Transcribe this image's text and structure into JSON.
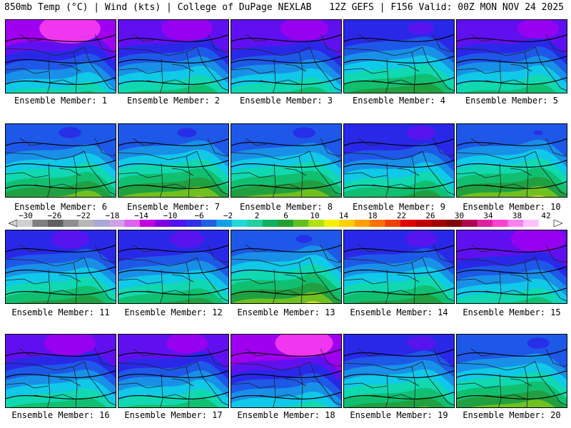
{
  "header": {
    "left": "850mb Temp (°C) | Wind (kts) | College of DuPage NEXLAB",
    "right": "12Z GEFS | F156 Valid: 00Z MON NOV 24 2025"
  },
  "members": [
    {
      "label": "Ensemble Member: 1",
      "cold": 0.95
    },
    {
      "label": "Ensemble Member: 2",
      "cold": 0.8
    },
    {
      "label": "Ensemble Member: 3",
      "cold": 0.75
    },
    {
      "label": "Ensemble Member: 4",
      "cold": 0.4
    },
    {
      "label": "Ensemble Member: 5",
      "cold": 0.65
    },
    {
      "label": "Ensemble Member: 6",
      "cold": 0.35
    },
    {
      "label": "Ensemble Member: 7",
      "cold": 0.3
    },
    {
      "label": "Ensemble Member: 8",
      "cold": 0.35
    },
    {
      "label": "Ensemble Member: 9",
      "cold": 0.45
    },
    {
      "label": "Ensemble Member: 10",
      "cold": 0.15
    },
    {
      "label": "Ensemble Member: 11",
      "cold": 0.6
    },
    {
      "label": "Ensemble Member: 12",
      "cold": 0.55
    },
    {
      "label": "Ensemble Member: 13",
      "cold": 0.25
    },
    {
      "label": "Ensemble Member: 14",
      "cold": 0.5
    },
    {
      "label": "Ensemble Member: 15",
      "cold": 0.85
    },
    {
      "label": "Ensemble Member: 16",
      "cold": 0.8
    },
    {
      "label": "Ensemble Member: 17",
      "cold": 0.65
    },
    {
      "label": "Ensemble Member: 18",
      "cold": 0.9
    },
    {
      "label": "Ensemble Member: 19",
      "cold": 0.45
    },
    {
      "label": "Ensemble Member: 20",
      "cold": 0.35
    }
  ],
  "colorbar": {
    "ticks": [
      "−30",
      "−26",
      "−22",
      "−18",
      "−14",
      "−10",
      "−6",
      "−2",
      "2",
      "6",
      "10",
      "14",
      "18",
      "22",
      "26",
      "30",
      "34",
      "38",
      "42"
    ],
    "colors": [
      "#cfcfcf",
      "#7f7f7f",
      "#5f5f5f",
      "#8f8f8f",
      "#b7b7b7",
      "#a9a9d6",
      "#d0a0e8",
      "#e060f0",
      "#c000e0",
      "#8000e0",
      "#5010f0",
      "#3030e8",
      "#2060e0",
      "#10a0e8",
      "#20d8d8",
      "#20d0a0",
      "#10b060",
      "#20a030",
      "#60c020",
      "#b0e010",
      "#f0f000",
      "#ffd000",
      "#ffa000",
      "#ff7000",
      "#f04000",
      "#e00000",
      "#c00000",
      "#a00000",
      "#800000",
      "#b00050",
      "#e020a0",
      "#ff40d0",
      "#ff80f0",
      "#ffc0ff",
      "#ffffff"
    ],
    "colors_note_values": [
      -32,
      -30,
      -28,
      -26,
      -24,
      -22,
      -20,
      -18,
      -16,
      -14,
      -12,
      -10,
      -8,
      -6,
      -4,
      -2,
      0,
      2,
      4,
      6,
      8,
      10,
      12,
      14,
      16,
      18,
      20,
      22,
      24,
      26,
      28,
      30,
      32,
      34,
      36
    ]
  }
}
